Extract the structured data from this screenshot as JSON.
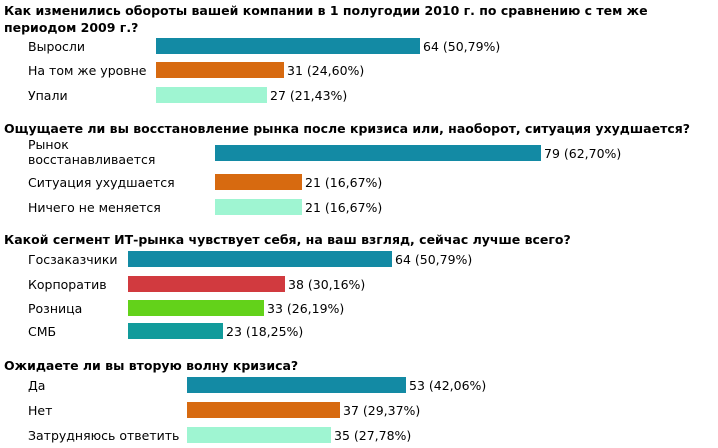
{
  "colors": {
    "teal": "#138aa4",
    "orange": "#d76a10",
    "mint": "#9ff5d2",
    "red": "#d13a3f",
    "green": "#63d21a",
    "darkteal": "#119b9b"
  },
  "chart_data": [
    {
      "type": "bar",
      "orientation": "horizontal",
      "title": "Как изменились обороты вашей компании в 1 полугодии 2010 г. по сравнению с тем же периодом 2009 г.?",
      "title_lines": [
        "Как изменились обороты вашей компании в 1 полугодии 2010 г. по сравнению с тем же",
        "периодом 2009 г.?"
      ],
      "categories": [
        "Выросли",
        "На том же уровне",
        "Упали"
      ],
      "values": [
        64,
        31,
        27
      ],
      "percents": [
        "50,79%",
        "24,60%",
        "21,43%"
      ],
      "value_labels": [
        "64 (50,79%)",
        "31 (24,60%)",
        "27 (21,43%)"
      ],
      "colors": [
        "#138aa4",
        "#d76a10",
        "#9ff5d2"
      ]
    },
    {
      "type": "bar",
      "orientation": "horizontal",
      "title": "Ощущаете ли вы восстановление рынка после кризиса или, наоборот, ситуация ухудшается?",
      "categories": [
        "Рынок восстанавливается",
        "Ситуация ухудшается",
        "Ничего не меняется"
      ],
      "category_lines": [
        [
          "Рынок",
          "восстанавливается"
        ],
        [
          "Ситуация ухудшается"
        ],
        [
          "Ничего не меняется"
        ]
      ],
      "values": [
        79,
        21,
        21
      ],
      "percents": [
        "62,70%",
        "16,67%",
        "16,67%"
      ],
      "value_labels": [
        "79 (62,70%)",
        "21 (16,67%)",
        "21 (16,67%)"
      ],
      "colors": [
        "#138aa4",
        "#d76a10",
        "#9ff5d2"
      ]
    },
    {
      "type": "bar",
      "orientation": "horizontal",
      "title": "Какой сегмент ИТ-рынка чувствует себя, на ваш взгляд, сейчас лучше всего?",
      "categories": [
        "Госзаказчики",
        "Корпоратив",
        "Розница",
        "СМБ"
      ],
      "values": [
        64,
        38,
        33,
        23
      ],
      "percents": [
        "50,79%",
        "30,16%",
        "26,19%",
        "18,25%"
      ],
      "value_labels": [
        "64 (50,79%)",
        "38 (30,16%)",
        "33 (26,19%)",
        "23 (18,25%)"
      ],
      "colors": [
        "#138aa4",
        "#d13a3f",
        "#63d21a",
        "#119b9b"
      ]
    },
    {
      "type": "bar",
      "orientation": "horizontal",
      "title": "Ожидаете ли вы вторую волну кризиса?",
      "categories": [
        "Да",
        "Нет",
        "Затрудняюсь ответить"
      ],
      "values": [
        53,
        37,
        35
      ],
      "percents": [
        "42,06%",
        "29,37%",
        "27,78%"
      ],
      "value_labels": [
        "53 (42,06%)",
        "37 (29,37%)",
        "35 (27,78%)"
      ],
      "colors": [
        "#138aa4",
        "#d76a10",
        "#9ff5d2"
      ]
    }
  ]
}
